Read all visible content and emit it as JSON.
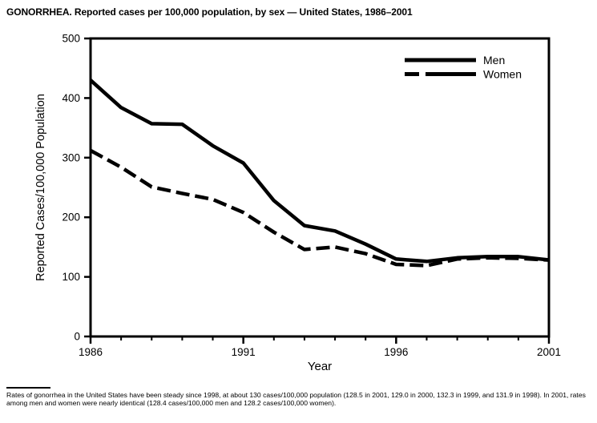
{
  "title": "GONORRHEA. Reported cases per 100,000 population, by sex — United States, 1986–2001",
  "chart_data": {
    "type": "line",
    "x": [
      1986,
      1987,
      1988,
      1989,
      1990,
      1991,
      1992,
      1993,
      1994,
      1995,
      1996,
      1997,
      1998,
      1999,
      2000,
      2001
    ],
    "series": [
      {
        "name": "Men",
        "style": "solid",
        "values": [
          430,
          384,
          357,
          356,
          320,
          291,
          228,
          186,
          177,
          155,
          130,
          126,
          132,
          134,
          134,
          128.4
        ]
      },
      {
        "name": "Women",
        "style": "dashed",
        "values": [
          312,
          284,
          251,
          240,
          230,
          208,
          175,
          146,
          150,
          139,
          121,
          119,
          130,
          132,
          131,
          128.2
        ]
      }
    ],
    "xlabel": "Year",
    "ylabel": "Reported Cases/100,000 Population",
    "ylim": [
      0,
      500
    ],
    "xlim": [
      1986,
      2001
    ],
    "y_ticks": [
      0,
      100,
      200,
      300,
      400,
      500
    ],
    "x_major_ticks": [
      1986,
      1991,
      1996,
      2001
    ],
    "x_minor_tick_interval": 1,
    "grid": false,
    "legend_position": "top-right",
    "line_color": "#000000",
    "background_color": "#ffffff"
  },
  "footnote": "Rates of gonorrhea in the United States have been steady since 1998, at about 130 cases/100,000 population (128.5 in 2001, 129.0 in 2000, 132.3 in 1999, and 131.9 in 1998). In 2001, rates among men and women were nearly identical (128.4 cases/100,000 men and 128.2 cases/100,000 women)."
}
